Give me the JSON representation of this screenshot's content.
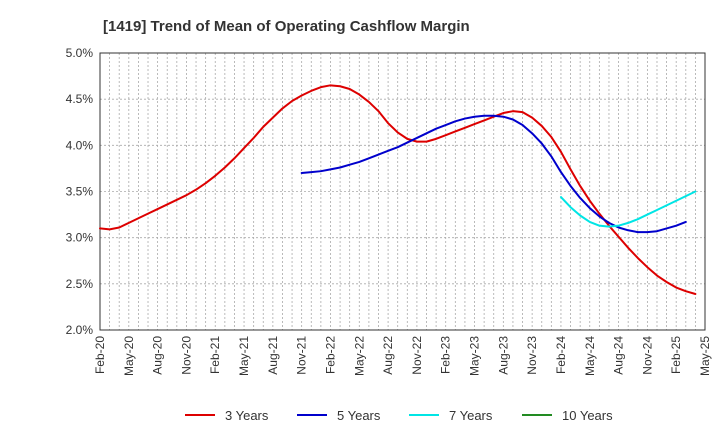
{
  "chart_data": {
    "type": "line",
    "title": "[1419]  Trend of Mean of Operating Cashflow Margin",
    "xlabel": "",
    "ylabel": "",
    "ylim": [
      2.0,
      5.0
    ],
    "y_ticks": [
      2.0,
      2.5,
      3.0,
      3.5,
      4.0,
      4.5,
      5.0
    ],
    "y_tick_labels": [
      "2.0%",
      "2.5%",
      "3.0%",
      "3.5%",
      "4.0%",
      "4.5%",
      "5.0%"
    ],
    "x_tick_labels": [
      "Feb-20",
      "May-20",
      "Aug-20",
      "Nov-20",
      "Feb-21",
      "May-21",
      "Aug-21",
      "Nov-21",
      "Feb-22",
      "May-22",
      "Aug-22",
      "Nov-22",
      "Feb-23",
      "May-23",
      "Aug-23",
      "Nov-23",
      "Feb-24",
      "May-24",
      "Aug-24",
      "Nov-24",
      "Feb-25",
      "May-25"
    ],
    "x_unit": "months since Feb-20",
    "xlim": [
      0,
      63
    ],
    "grid": true,
    "legend_position": "bottom",
    "series": [
      {
        "name": "3 Years",
        "color": "#dd0000",
        "points": [
          [
            0,
            3.1
          ],
          [
            1,
            3.09
          ],
          [
            2,
            3.11
          ],
          [
            3,
            3.16
          ],
          [
            4,
            3.21
          ],
          [
            5,
            3.26
          ],
          [
            6,
            3.31
          ],
          [
            7,
            3.36
          ],
          [
            8,
            3.41
          ],
          [
            9,
            3.46
          ],
          [
            10,
            3.52
          ],
          [
            11,
            3.59
          ],
          [
            12,
            3.67
          ],
          [
            13,
            3.76
          ],
          [
            14,
            3.86
          ],
          [
            15,
            3.97
          ],
          [
            16,
            4.08
          ],
          [
            17,
            4.2
          ],
          [
            18,
            4.3
          ],
          [
            19,
            4.4
          ],
          [
            20,
            4.48
          ],
          [
            21,
            4.54
          ],
          [
            22,
            4.59
          ],
          [
            23,
            4.63
          ],
          [
            24,
            4.65
          ],
          [
            25,
            4.64
          ],
          [
            26,
            4.61
          ],
          [
            27,
            4.55
          ],
          [
            28,
            4.47
          ],
          [
            29,
            4.37
          ],
          [
            30,
            4.24
          ],
          [
            31,
            4.14
          ],
          [
            32,
            4.07
          ],
          [
            33,
            4.04
          ],
          [
            34,
            4.04
          ],
          [
            35,
            4.07
          ],
          [
            36,
            4.11
          ],
          [
            37,
            4.15
          ],
          [
            38,
            4.19
          ],
          [
            39,
            4.23
          ],
          [
            40,
            4.27
          ],
          [
            41,
            4.31
          ],
          [
            42,
            4.35
          ],
          [
            43,
            4.37
          ],
          [
            44,
            4.36
          ],
          [
            45,
            4.3
          ],
          [
            46,
            4.21
          ],
          [
            47,
            4.09
          ],
          [
            48,
            3.93
          ],
          [
            49,
            3.74
          ],
          [
            50,
            3.56
          ],
          [
            51,
            3.4
          ],
          [
            52,
            3.26
          ],
          [
            53,
            3.13
          ],
          [
            54,
            3.01
          ],
          [
            55,
            2.89
          ],
          [
            56,
            2.78
          ],
          [
            57,
            2.68
          ],
          [
            58,
            2.59
          ],
          [
            59,
            2.52
          ],
          [
            60,
            2.46
          ],
          [
            61,
            2.42
          ],
          [
            62,
            2.39
          ]
        ]
      },
      {
        "name": "5 Years",
        "color": "#0000cc",
        "points": [
          [
            21,
            3.7
          ],
          [
            22,
            3.71
          ],
          [
            23,
            3.72
          ],
          [
            24,
            3.74
          ],
          [
            25,
            3.76
          ],
          [
            26,
            3.79
          ],
          [
            27,
            3.82
          ],
          [
            28,
            3.86
          ],
          [
            29,
            3.9
          ],
          [
            30,
            3.94
          ],
          [
            31,
            3.98
          ],
          [
            32,
            4.03
          ],
          [
            33,
            4.08
          ],
          [
            34,
            4.13
          ],
          [
            35,
            4.18
          ],
          [
            36,
            4.22
          ],
          [
            37,
            4.26
          ],
          [
            38,
            4.29
          ],
          [
            39,
            4.31
          ],
          [
            40,
            4.32
          ],
          [
            41,
            4.32
          ],
          [
            42,
            4.31
          ],
          [
            43,
            4.28
          ],
          [
            44,
            4.22
          ],
          [
            45,
            4.13
          ],
          [
            46,
            4.02
          ],
          [
            47,
            3.88
          ],
          [
            48,
            3.71
          ],
          [
            49,
            3.56
          ],
          [
            50,
            3.43
          ],
          [
            51,
            3.32
          ],
          [
            52,
            3.23
          ],
          [
            53,
            3.16
          ],
          [
            54,
            3.11
          ],
          [
            55,
            3.08
          ],
          [
            56,
            3.06
          ],
          [
            57,
            3.06
          ],
          [
            58,
            3.07
          ],
          [
            59,
            3.1
          ],
          [
            60,
            3.13
          ],
          [
            61,
            3.17
          ]
        ]
      },
      {
        "name": "7 Years",
        "color": "#00e5e5",
        "points": [
          [
            48,
            3.44
          ],
          [
            49,
            3.33
          ],
          [
            50,
            3.24
          ],
          [
            51,
            3.17
          ],
          [
            52,
            3.13
          ],
          [
            53,
            3.12
          ],
          [
            54,
            3.13
          ],
          [
            55,
            3.16
          ],
          [
            56,
            3.2
          ],
          [
            57,
            3.25
          ],
          [
            58,
            3.3
          ],
          [
            59,
            3.35
          ],
          [
            60,
            3.4
          ],
          [
            61,
            3.45
          ],
          [
            62,
            3.5
          ]
        ]
      },
      {
        "name": "10 Years",
        "color": "#228b22",
        "points": []
      }
    ]
  }
}
